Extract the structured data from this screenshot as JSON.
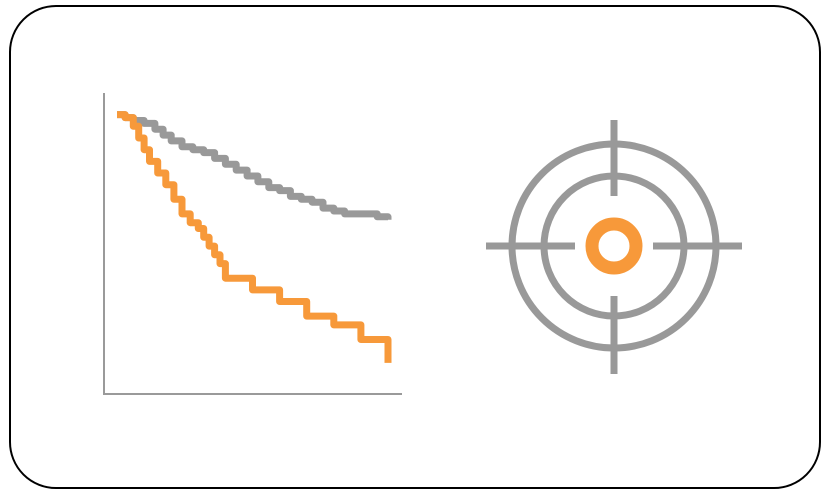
{
  "colors": {
    "frame": "#000000",
    "axis": "#9a9a9a",
    "reference_curve": "#999999",
    "treatment_curve": "#f7993a",
    "target_rings": "#999999",
    "target_center": "#f7993a",
    "background": "#ffffff"
  },
  "icons": {
    "chart": "survival-curve-icon",
    "target": "crosshair-target-icon"
  },
  "chart_data": {
    "type": "line",
    "title": "",
    "xlabel": "",
    "ylabel": "",
    "xlim": [
      0,
      100
    ],
    "ylim": [
      0,
      100
    ],
    "grid": false,
    "legend": "none",
    "series": [
      {
        "color": "#999999",
        "x": [
          0,
          3,
          6,
          10,
          14,
          17,
          20,
          24,
          28,
          32,
          36,
          40,
          44,
          48,
          52,
          56,
          60,
          64,
          68,
          72,
          76,
          80,
          84,
          88,
          92,
          96,
          100
        ],
        "y": [
          96,
          95,
          94,
          93,
          91,
          89,
          87,
          85,
          84,
          83,
          81,
          79,
          77,
          75,
          73,
          71,
          70,
          68,
          67,
          66,
          64,
          63,
          62,
          62,
          62,
          61,
          60
        ]
      },
      {
        "color": "#f7993a",
        "x": [
          0,
          3,
          6,
          8,
          10,
          12,
          15,
          18,
          21,
          24,
          27,
          30,
          32,
          34,
          36,
          38,
          40,
          45,
          50,
          55,
          60,
          65,
          70,
          75,
          80,
          85,
          90,
          95,
          100
        ],
        "y": [
          96,
          95,
          92,
          88,
          84,
          80,
          76,
          72,
          67,
          62,
          59,
          57,
          54,
          51,
          48,
          45,
          40,
          40,
          36,
          36,
          32,
          32,
          27,
          27,
          24,
          24,
          19,
          19,
          11
        ]
      }
    ]
  }
}
